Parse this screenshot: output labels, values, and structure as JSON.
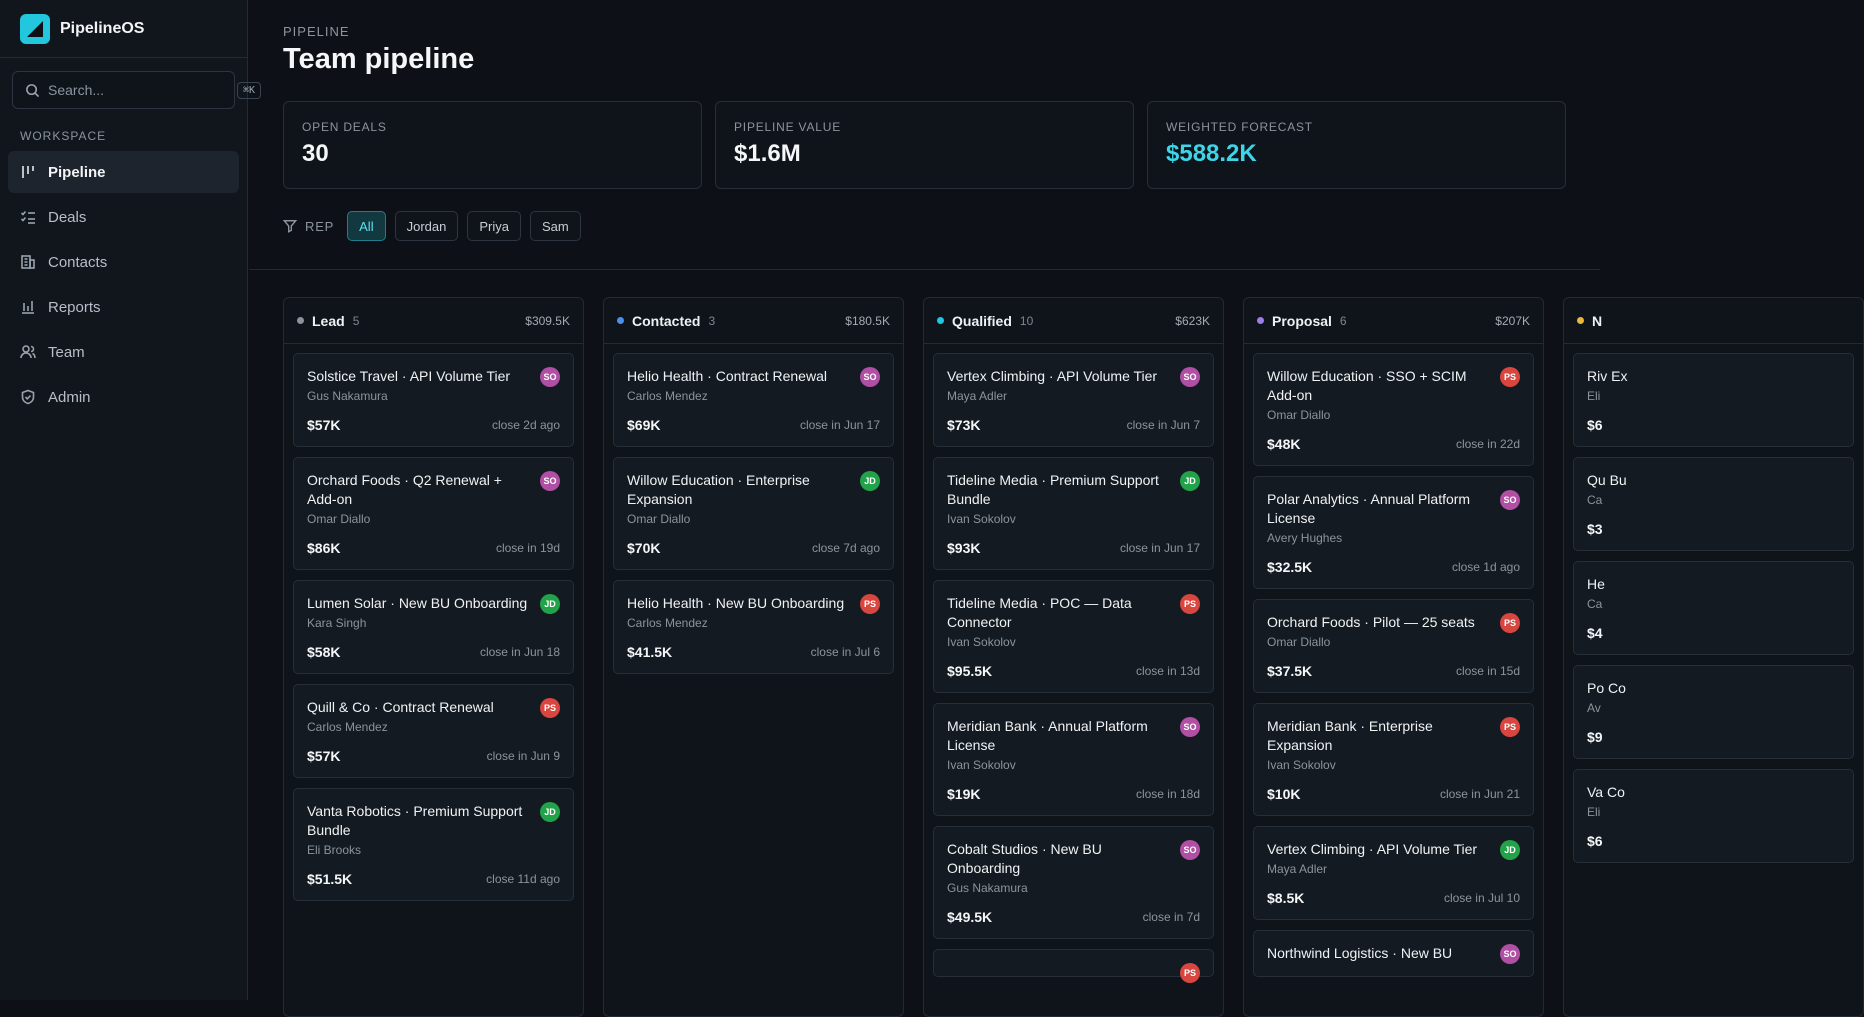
{
  "app": {
    "name": "PipelineOS"
  },
  "search": {
    "placeholder": "Search...",
    "shortcut": "⌘K"
  },
  "sidebar": {
    "section": "WORKSPACE",
    "items": [
      {
        "label": "Pipeline",
        "icon": "kanban-icon",
        "active": true
      },
      {
        "label": "Deals",
        "icon": "checklist-icon"
      },
      {
        "label": "Contacts",
        "icon": "building-icon"
      },
      {
        "label": "Reports",
        "icon": "bar-chart-icon"
      },
      {
        "label": "Team",
        "icon": "users-icon"
      },
      {
        "label": "Admin",
        "icon": "shield-icon"
      }
    ]
  },
  "header": {
    "eyebrow": "PIPELINE",
    "title": "Team pipeline"
  },
  "stats": [
    {
      "label": "OPEN DEALS",
      "value": "30"
    },
    {
      "label": "PIPELINE VALUE",
      "value": "$1.6M"
    },
    {
      "label": "WEIGHTED FORECAST",
      "value": "$588.2K",
      "accent": "#3fd4e8"
    }
  ],
  "filters": {
    "label": "REP",
    "options": [
      "All",
      "Jordan",
      "Priya",
      "Sam"
    ],
    "selected": "All"
  },
  "avatar_colors": {
    "SO": "#b04fa3",
    "JD": "#22a34a",
    "PS": "#d9463f"
  },
  "columns": [
    {
      "name": "Lead",
      "count": "5",
      "total": "$309.5K",
      "color": "#8b949e",
      "cards": [
        {
          "title": "Solstice Travel · API Volume Tier",
          "owner": "Gus Nakamura",
          "amount": "$57K",
          "close": "close 2d ago",
          "rep": "SO"
        },
        {
          "title": "Orchard Foods · Q2 Renewal + Add-on",
          "owner": "Omar Diallo",
          "amount": "$86K",
          "close": "close in 19d",
          "rep": "SO"
        },
        {
          "title": "Lumen Solar · New BU Onboarding",
          "owner": "Kara Singh",
          "amount": "$58K",
          "close": "close in Jun 18",
          "rep": "JD"
        },
        {
          "title": "Quill & Co · Contract Renewal",
          "owner": "Carlos Mendez",
          "amount": "$57K",
          "close": "close in Jun 9",
          "rep": "PS"
        },
        {
          "title": "Vanta Robotics · Premium Support Bundle",
          "owner": "Eli Brooks",
          "amount": "$51.5K",
          "close": "close 11d ago",
          "rep": "JD"
        }
      ]
    },
    {
      "name": "Contacted",
      "count": "3",
      "total": "$180.5K",
      "color": "#4f8fe6",
      "cards": [
        {
          "title": "Helio Health · Contract Renewal",
          "owner": "Carlos Mendez",
          "amount": "$69K",
          "close": "close in Jun 17",
          "rep": "SO"
        },
        {
          "title": "Willow Education · Enterprise Expansion",
          "owner": "Omar Diallo",
          "amount": "$70K",
          "close": "close 7d ago",
          "rep": "JD"
        },
        {
          "title": "Helio Health · New BU Onboarding",
          "owner": "Carlos Mendez",
          "amount": "$41.5K",
          "close": "close in Jul 6",
          "rep": "PS"
        }
      ]
    },
    {
      "name": "Qualified",
      "count": "10",
      "total": "$623K",
      "color": "#22c7dd",
      "cards": [
        {
          "title": "Vertex Climbing · API Volume Tier",
          "owner": "Maya Adler",
          "amount": "$73K",
          "close": "close in Jun 7",
          "rep": "SO"
        },
        {
          "title": "Tideline Media · Premium Support Bundle",
          "owner": "Ivan Sokolov",
          "amount": "$93K",
          "close": "close in Jun 17",
          "rep": "JD"
        },
        {
          "title": "Tideline Media · POC — Data Connector",
          "owner": "Ivan Sokolov",
          "amount": "$95.5K",
          "close": "close in 13d",
          "rep": "PS"
        },
        {
          "title": "Meridian Bank · Annual Platform License",
          "owner": "Ivan Sokolov",
          "amount": "$19K",
          "close": "close in 18d",
          "rep": "SO"
        },
        {
          "title": "Cobalt Studios · New BU Onboarding",
          "owner": "Gus Nakamura",
          "amount": "$49.5K",
          "close": "close in 7d",
          "rep": "SO"
        },
        {
          "title": "",
          "owner": "",
          "amount": "",
          "close": "",
          "rep": "PS"
        }
      ]
    },
    {
      "name": "Proposal",
      "count": "6",
      "total": "$207K",
      "color": "#9b7ee8",
      "cards": [
        {
          "title": "Willow Education · SSO + SCIM Add-on",
          "owner": "Omar Diallo",
          "amount": "$48K",
          "close": "close in 22d",
          "rep": "PS"
        },
        {
          "title": "Polar Analytics · Annual Platform License",
          "owner": "Avery Hughes",
          "amount": "$32.5K",
          "close": "close 1d ago",
          "rep": "SO"
        },
        {
          "title": "Orchard Foods · Pilot — 25 seats",
          "owner": "Omar Diallo",
          "amount": "$37.5K",
          "close": "close in 15d",
          "rep": "PS"
        },
        {
          "title": "Meridian Bank · Enterprise Expansion",
          "owner": "Ivan Sokolov",
          "amount": "$10K",
          "close": "close in Jun 21",
          "rep": "PS"
        },
        {
          "title": "Vertex Climbing · API Volume Tier",
          "owner": "Maya Adler",
          "amount": "$8.5K",
          "close": "close in Jul 10",
          "rep": "JD"
        },
        {
          "title": "Northwind Logistics · New BU",
          "owner": "",
          "amount": "",
          "close": "",
          "rep": "SO"
        }
      ]
    },
    {
      "name": "N",
      "count": "",
      "total": "",
      "color": "#e8b83f",
      "cards": [
        {
          "title": "Riv Ex",
          "owner": "Eli",
          "amount": "$6",
          "close": "",
          "rep": ""
        },
        {
          "title": "Qu Bu",
          "owner": "Ca",
          "amount": "$3",
          "close": "",
          "rep": ""
        },
        {
          "title": "He",
          "owner": "Ca",
          "amount": "$4",
          "close": "",
          "rep": ""
        },
        {
          "title": "Po Co",
          "owner": "Av",
          "amount": "$9",
          "close": "",
          "rep": ""
        },
        {
          "title": "Va Co",
          "owner": "Eli",
          "amount": "$6",
          "close": "",
          "rep": ""
        }
      ]
    }
  ]
}
